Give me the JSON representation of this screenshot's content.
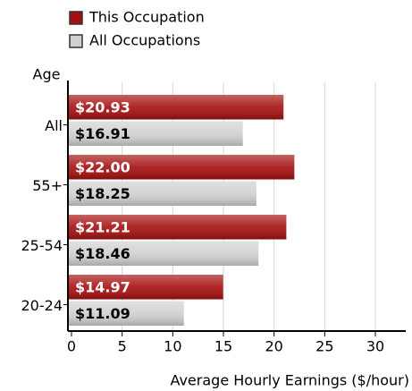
{
  "chart_data": {
    "type": "bar",
    "orientation": "horizontal",
    "y_label": "Age",
    "x_label": "Average Hourly Earnings ($/hour)",
    "categories": [
      "All",
      "55+",
      "25-54",
      "20-24"
    ],
    "series": [
      {
        "name": "This Occupation",
        "color": "#a50f0f",
        "values": [
          20.93,
          22.0,
          21.21,
          14.97
        ],
        "value_labels": [
          "$20.93",
          "$22.00",
          "$21.21",
          "$14.97"
        ]
      },
      {
        "name": "All Occupations",
        "color": "#d0d0d0",
        "values": [
          16.91,
          18.25,
          18.46,
          11.09
        ],
        "value_labels": [
          "$16.91",
          "$18.25",
          "$18.46",
          "$11.09"
        ]
      }
    ],
    "xlim": [
      0,
      33
    ],
    "xticks": [
      0,
      5,
      10,
      15,
      20,
      25,
      30
    ],
    "grid": true
  }
}
